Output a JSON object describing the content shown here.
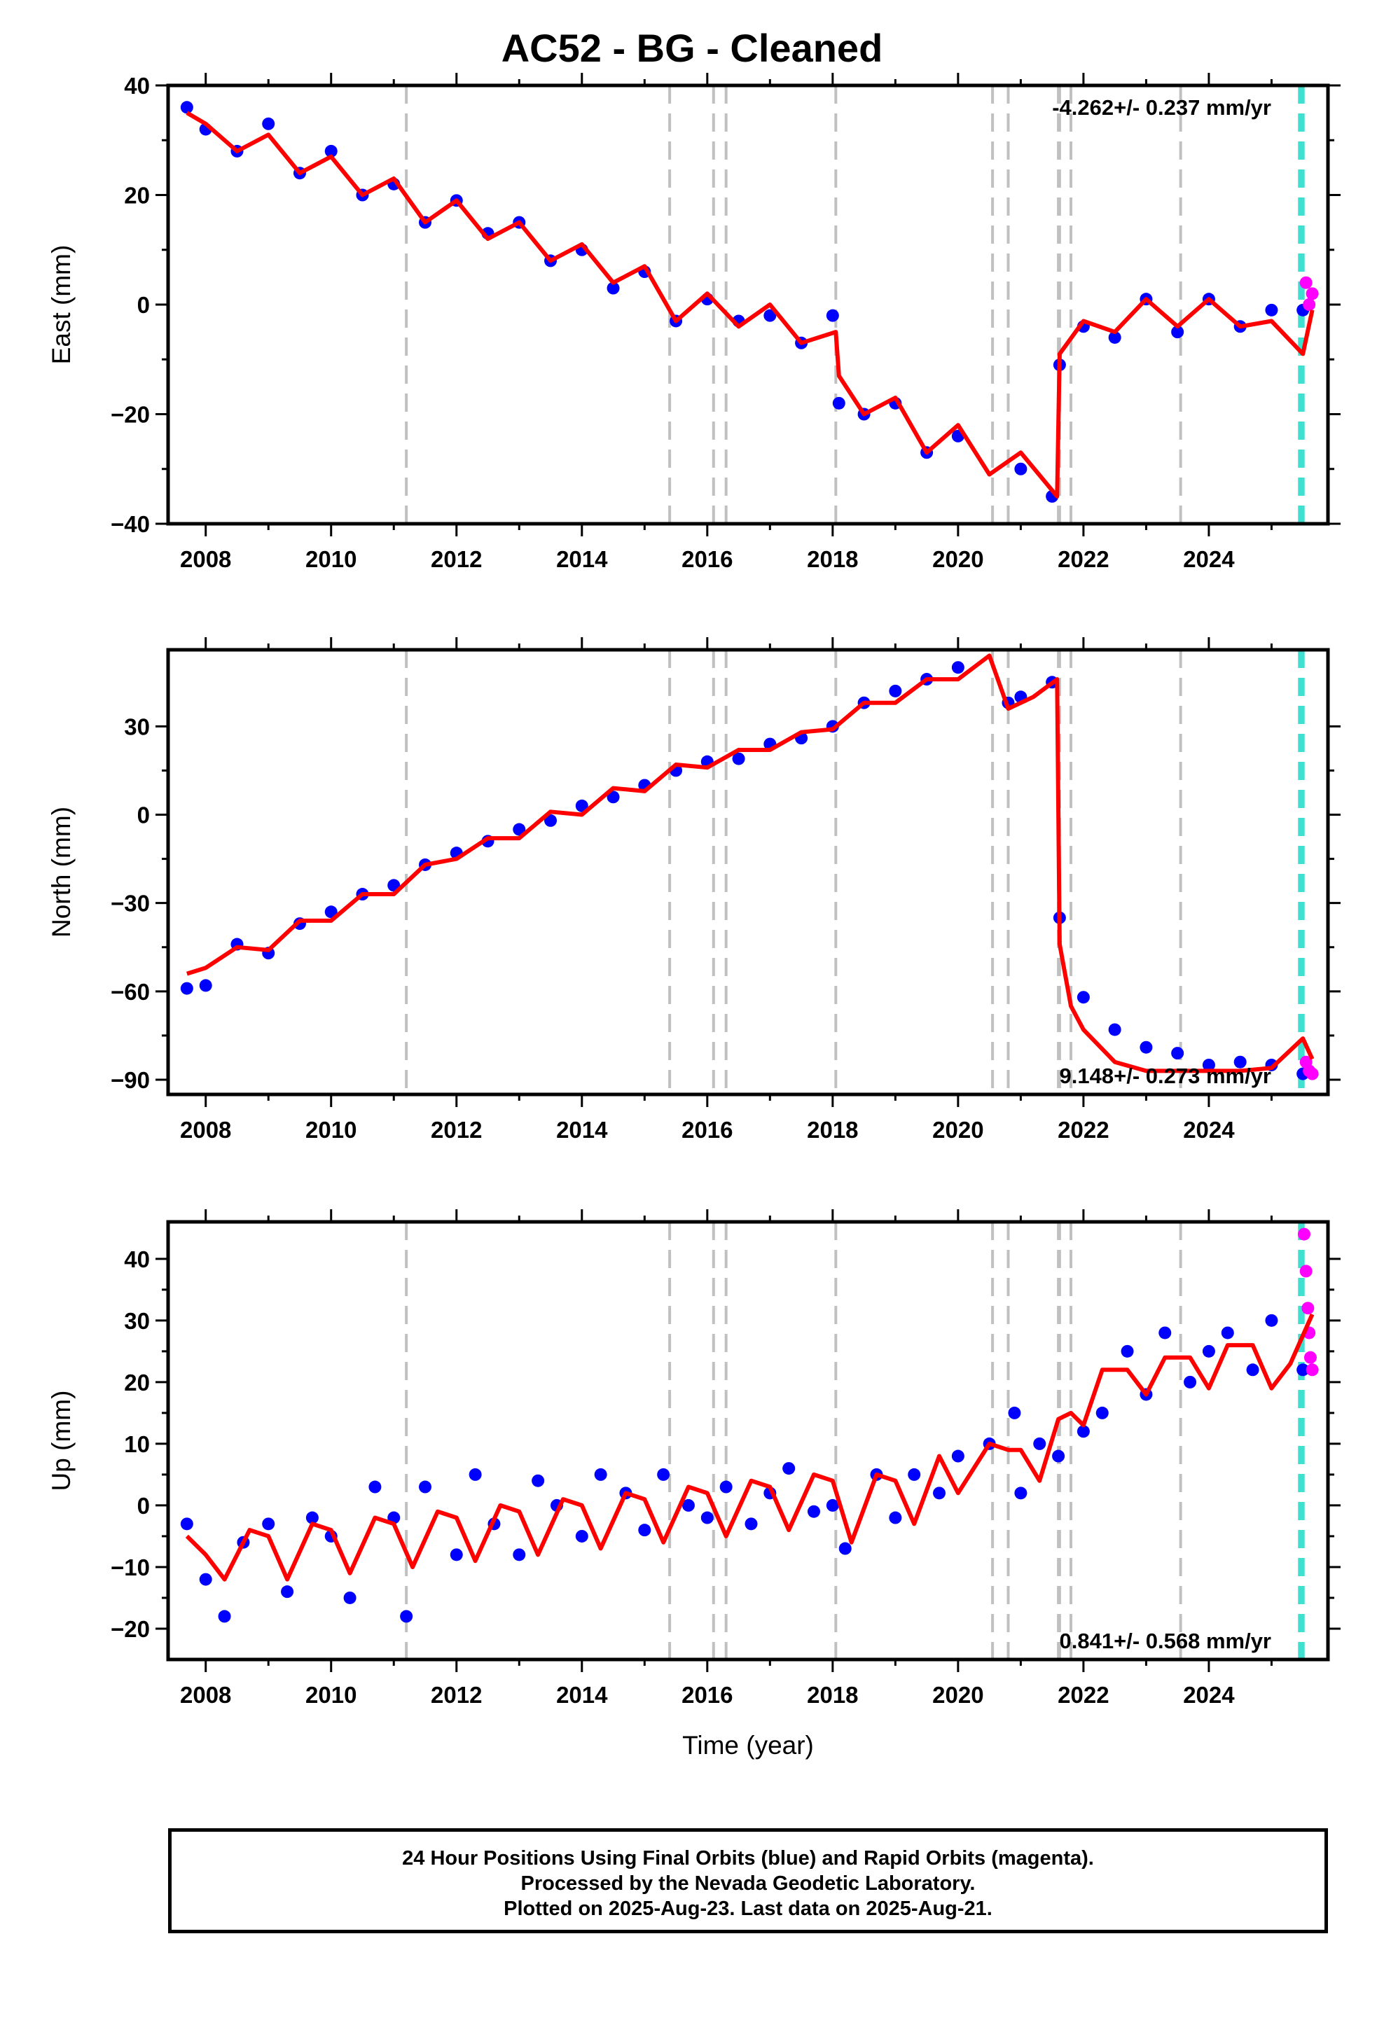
{
  "title": "AC52  - BG - Cleaned",
  "footer": {
    "line1": "24 Hour Positions Using Final Orbits (blue) and Rapid Orbits (magenta).",
    "line2": "Processed by the Nevada Geodetic Laboratory.",
    "line3": "Plotted on 2025-Aug-23. Last data on 2025-Aug-21."
  },
  "colors": {
    "final_orbits": "#0000ff",
    "rapid_orbits": "#ff00ff",
    "model": "#ff0000",
    "equipment_change_lines": "#c0c0c0",
    "earthquake_line": "#40e0d0"
  },
  "chart_data": [
    {
      "type": "scatter",
      "ylabel": "East (mm)",
      "xlabel": "",
      "xlim": [
        2007.4,
        2025.9
      ],
      "ylim": [
        -40,
        40
      ],
      "x_ticks": [
        2008,
        2010,
        2012,
        2014,
        2016,
        2018,
        2020,
        2022,
        2024
      ],
      "y_ticks": [
        -40,
        -20,
        0,
        20,
        40
      ],
      "y_tick_labels": [
        "−40",
        "−20",
        "0",
        "20",
        "40"
      ],
      "rate_label": "-4.262+/- 0.237 mm/yr",
      "rate_label_position": "top-right",
      "equipment_change_epochs": [
        2011.2,
        2015.4,
        2016.1,
        2016.3,
        2018.05,
        2020.55,
        2020.8,
        2021.6,
        2021.62,
        2021.8,
        2023.55
      ],
      "earthquake_epochs": [
        2025.45,
        2025.5
      ],
      "series": [
        {
          "role": "final_orbits",
          "x": [
            2007.7,
            2008.0,
            2008.5,
            2009.0,
            2009.5,
            2010.0,
            2010.5,
            2011.0,
            2011.5,
            2012.0,
            2012.5,
            2013.0,
            2013.5,
            2014.0,
            2014.5,
            2015.0,
            2015.5,
            2016.0,
            2016.5,
            2017.0,
            2017.5,
            2018.0,
            2018.1,
            2018.5,
            2019.0,
            2019.5,
            2020.0,
            2021.0,
            2021.5,
            2021.62,
            2022.0,
            2022.5,
            2023.0,
            2023.5,
            2024.0,
            2024.5,
            2025.0,
            2025.5
          ],
          "y": [
            36,
            32,
            28,
            33,
            24,
            28,
            20,
            22,
            15,
            19,
            13,
            15,
            8,
            10,
            3,
            6,
            -3,
            1,
            -3,
            -2,
            -7,
            -2,
            -18,
            -20,
            -18,
            -27,
            -24,
            -30,
            -35,
            -11,
            -4,
            -6,
            1,
            -5,
            1,
            -4,
            -1,
            -1
          ]
        },
        {
          "role": "rapid_orbits",
          "x": [
            2025.55,
            2025.6,
            2025.65
          ],
          "y": [
            4,
            0,
            2
          ]
        },
        {
          "role": "model",
          "x": [
            2007.7,
            2008.0,
            2008.5,
            2009.0,
            2009.5,
            2010.0,
            2010.5,
            2011.0,
            2011.5,
            2012.0,
            2012.5,
            2013.0,
            2013.5,
            2014.0,
            2014.5,
            2015.0,
            2015.5,
            2016.0,
            2016.5,
            2017.0,
            2017.5,
            2018.05,
            2018.1,
            2018.5,
            2019.0,
            2019.5,
            2020.0,
            2020.5,
            2021.0,
            2021.58,
            2021.62,
            2022.0,
            2022.5,
            2023.0,
            2023.5,
            2024.0,
            2024.5,
            2025.0,
            2025.5,
            2025.65
          ],
          "y": [
            35,
            33,
            28,
            31,
            24,
            27,
            20,
            23,
            15,
            19,
            12,
            15,
            8,
            11,
            4,
            7,
            -3,
            2,
            -4,
            0,
            -7,
            -5,
            -13,
            -20,
            -17,
            -27,
            -22,
            -31,
            -27,
            -35,
            -9,
            -3,
            -5,
            1,
            -4,
            1,
            -4,
            -3,
            -9,
            -1
          ]
        }
      ]
    },
    {
      "type": "scatter",
      "ylabel": "North (mm)",
      "xlabel": "",
      "xlim": [
        2007.4,
        2025.9
      ],
      "ylim": [
        -95,
        56
      ],
      "x_ticks": [
        2008,
        2010,
        2012,
        2014,
        2016,
        2018,
        2020,
        2022,
        2024
      ],
      "y_ticks": [
        -90,
        -60,
        -30,
        0,
        30
      ],
      "y_tick_labels": [
        "−90",
        "−60",
        "−30",
        "0",
        "30"
      ],
      "rate_label": "9.148+/- 0.273 mm/yr",
      "rate_label_position": "bottom-right",
      "equipment_change_epochs": [
        2011.2,
        2015.4,
        2016.1,
        2016.3,
        2018.05,
        2020.55,
        2020.8,
        2021.6,
        2021.62,
        2021.8,
        2023.55
      ],
      "earthquake_epochs": [
        2025.45,
        2025.5
      ],
      "series": [
        {
          "role": "final_orbits",
          "x": [
            2007.7,
            2008.0,
            2008.5,
            2009.0,
            2009.5,
            2010.0,
            2010.5,
            2011.0,
            2011.5,
            2012.0,
            2012.5,
            2013.0,
            2013.5,
            2014.0,
            2014.5,
            2015.0,
            2015.5,
            2016.0,
            2016.5,
            2017.0,
            2017.5,
            2018.0,
            2018.5,
            2019.0,
            2019.5,
            2020.0,
            2020.8,
            2021.0,
            2021.5,
            2021.62,
            2022.0,
            2022.5,
            2023.0,
            2023.5,
            2024.0,
            2024.5,
            2025.0,
            2025.5
          ],
          "y": [
            -59,
            -58,
            -44,
            -47,
            -37,
            -33,
            -27,
            -24,
            -17,
            -13,
            -9,
            -5,
            -2,
            3,
            6,
            10,
            15,
            18,
            19,
            24,
            26,
            30,
            38,
            42,
            46,
            50,
            38,
            40,
            45,
            -35,
            -62,
            -73,
            -79,
            -81,
            -85,
            -84,
            -85,
            -88
          ]
        },
        {
          "role": "rapid_orbits",
          "x": [
            2025.55,
            2025.6,
            2025.65
          ],
          "y": [
            -84,
            -87,
            -88
          ]
        },
        {
          "role": "model",
          "x": [
            2007.7,
            2008.0,
            2008.5,
            2009.0,
            2009.5,
            2010.0,
            2010.5,
            2011.0,
            2011.5,
            2012.0,
            2012.5,
            2013.0,
            2013.5,
            2014.0,
            2014.5,
            2015.0,
            2015.5,
            2016.0,
            2016.5,
            2017.0,
            2017.5,
            2018.0,
            2018.5,
            2019.0,
            2019.5,
            2020.0,
            2020.5,
            2020.6,
            2020.8,
            2021.2,
            2021.58,
            2021.62,
            2021.8,
            2022.0,
            2022.5,
            2023.0,
            2023.5,
            2024.0,
            2024.5,
            2025.0,
            2025.5,
            2025.65
          ],
          "y": [
            -54,
            -52,
            -45,
            -46,
            -36,
            -36,
            -27,
            -27,
            -17,
            -15,
            -8,
            -8,
            1,
            0,
            9,
            8,
            17,
            16,
            22,
            22,
            28,
            29,
            38,
            38,
            46,
            46,
            54,
            48,
            36,
            40,
            46,
            -44,
            -65,
            -73,
            -84,
            -87,
            -87,
            -87,
            -87,
            -86,
            -76,
            -83
          ]
        }
      ]
    },
    {
      "type": "scatter",
      "ylabel": "Up (mm)",
      "xlabel": "Time (year)",
      "xlim": [
        2007.4,
        2025.9
      ],
      "ylim": [
        -25,
        46
      ],
      "x_ticks": [
        2008,
        2010,
        2012,
        2014,
        2016,
        2018,
        2020,
        2022,
        2024
      ],
      "y_ticks": [
        -20,
        -10,
        0,
        10,
        20,
        30,
        40
      ],
      "y_tick_labels": [
        "−20",
        "−10",
        "0",
        "10",
        "20",
        "30",
        "40"
      ],
      "rate_label": "0.841+/- 0.568 mm/yr",
      "rate_label_position": "bottom-right",
      "equipment_change_epochs": [
        2011.2,
        2015.4,
        2016.1,
        2016.3,
        2018.05,
        2020.55,
        2020.8,
        2021.6,
        2021.62,
        2021.8,
        2023.55
      ],
      "earthquake_epochs": [
        2025.45,
        2025.5
      ],
      "series": [
        {
          "role": "final_orbits",
          "x": [
            2007.7,
            2008.0,
            2008.3,
            2008.6,
            2009.0,
            2009.3,
            2009.7,
            2010.0,
            2010.3,
            2010.7,
            2011.0,
            2011.2,
            2011.5,
            2012.0,
            2012.3,
            2012.6,
            2013.0,
            2013.3,
            2013.6,
            2014.0,
            2014.3,
            2014.7,
            2015.0,
            2015.3,
            2015.7,
            2016.0,
            2016.3,
            2016.7,
            2017.0,
            2017.3,
            2017.7,
            2018.0,
            2018.2,
            2018.7,
            2019.0,
            2019.3,
            2019.7,
            2020.0,
            2020.5,
            2020.9,
            2021.0,
            2021.3,
            2021.6,
            2022.0,
            2022.3,
            2022.7,
            2023.0,
            2023.3,
            2023.7,
            2024.0,
            2024.3,
            2024.7,
            2025.0,
            2025.5
          ],
          "y": [
            -3,
            -12,
            -18,
            -6,
            -3,
            -14,
            -2,
            -5,
            -15,
            3,
            -2,
            -18,
            3,
            -8,
            5,
            -3,
            -8,
            4,
            0,
            -5,
            5,
            2,
            -4,
            5,
            0,
            -2,
            3,
            -3,
            2,
            6,
            -1,
            0,
            -7,
            5,
            -2,
            5,
            2,
            8,
            10,
            15,
            2,
            10,
            8,
            12,
            15,
            25,
            18,
            28,
            20,
            25,
            28,
            22,
            30,
            22
          ]
        },
        {
          "role": "rapid_orbits",
          "x": [
            2025.52,
            2025.55,
            2025.58,
            2025.6,
            2025.62,
            2025.65
          ],
          "y": [
            44,
            38,
            32,
            28,
            24,
            22
          ]
        },
        {
          "role": "model",
          "x": [
            2007.7,
            2008.0,
            2008.3,
            2008.7,
            2009.0,
            2009.3,
            2009.7,
            2010.0,
            2010.3,
            2010.7,
            2011.0,
            2011.3,
            2011.7,
            2012.0,
            2012.3,
            2012.7,
            2013.0,
            2013.3,
            2013.7,
            2014.0,
            2014.3,
            2014.7,
            2015.0,
            2015.3,
            2015.7,
            2016.0,
            2016.3,
            2016.7,
            2017.0,
            2017.3,
            2017.7,
            2018.0,
            2018.3,
            2018.7,
            2019.0,
            2019.3,
            2019.7,
            2020.0,
            2020.5,
            2020.8,
            2021.0,
            2021.3,
            2021.6,
            2021.8,
            2022.0,
            2022.3,
            2022.7,
            2023.0,
            2023.3,
            2023.7,
            2024.0,
            2024.3,
            2024.7,
            2025.0,
            2025.3,
            2025.65
          ],
          "y": [
            -5,
            -8,
            -12,
            -4,
            -5,
            -12,
            -3,
            -4,
            -11,
            -2,
            -3,
            -10,
            -1,
            -2,
            -9,
            0,
            -1,
            -8,
            1,
            0,
            -7,
            2,
            1,
            -6,
            3,
            2,
            -5,
            4,
            3,
            -4,
            5,
            4,
            -6,
            5,
            4,
            -3,
            8,
            2,
            10,
            9,
            9,
            4,
            14,
            15,
            13,
            22,
            22,
            18,
            24,
            24,
            19,
            26,
            26,
            19,
            23,
            31
          ]
        }
      ]
    }
  ]
}
